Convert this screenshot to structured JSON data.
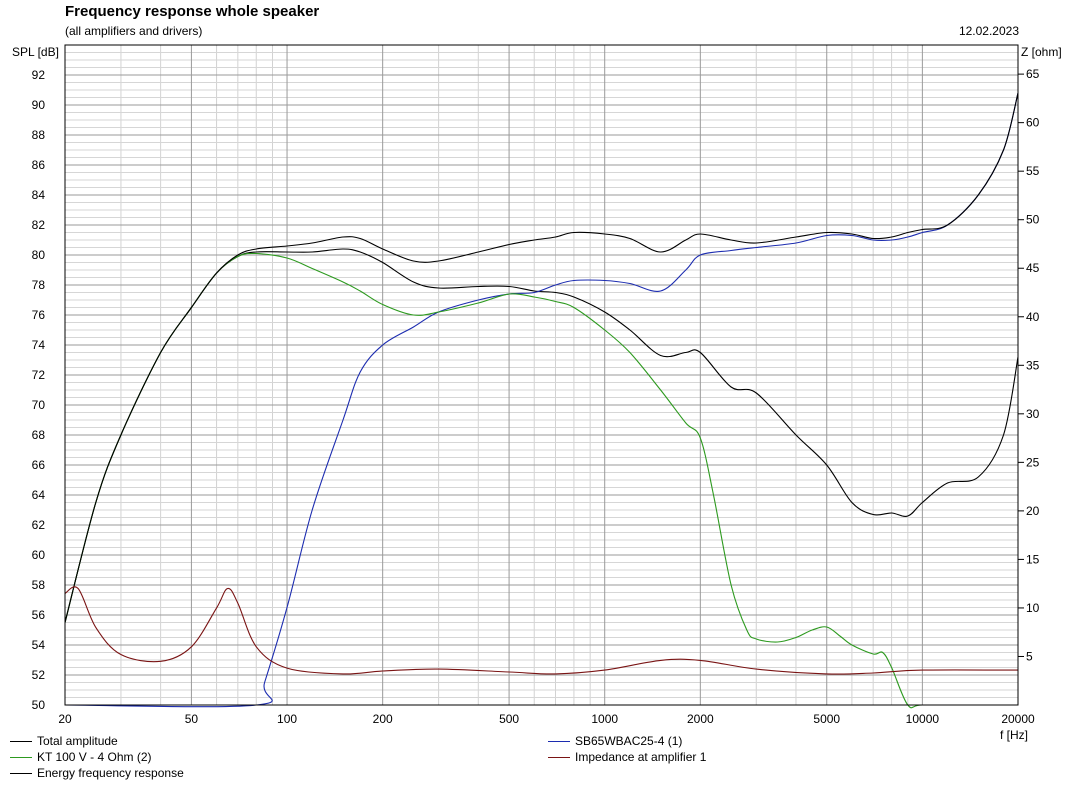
{
  "header": {
    "title": "Frequency response whole speaker",
    "subtitle": "(all amplifiers and drivers)",
    "date": "12.02.2023"
  },
  "chart_data": {
    "type": "line",
    "title": "Frequency response whole speaker",
    "subtitle": "(all amplifiers and drivers)",
    "xlabel": "f [Hz]",
    "ylabel_left": "SPL [dB]",
    "ylabel_right": "Z [ohm]",
    "x_scale": "log",
    "xlim": [
      20,
      20000
    ],
    "ylim_left": [
      50,
      94
    ],
    "ylim_right": [
      0,
      68
    ],
    "grid": true,
    "legend_placement": "bottom",
    "x_ticks": [
      20,
      50,
      100,
      200,
      500,
      1000,
      2000,
      5000,
      10000,
      20000
    ],
    "y_ticks_left": [
      50,
      52,
      54,
      56,
      58,
      60,
      62,
      64,
      66,
      68,
      70,
      72,
      74,
      76,
      78,
      80,
      82,
      84,
      86,
      88,
      90,
      92
    ],
    "y_ticks_right": [
      5,
      10,
      15,
      20,
      25,
      30,
      35,
      40,
      45,
      50,
      55,
      60,
      65
    ],
    "series": [
      {
        "name": "Total amplitude",
        "axis": "left",
        "color": "#000000",
        "x": [
          20,
          25,
          30,
          40,
          50,
          60,
          70,
          80,
          100,
          120,
          150,
          170,
          200,
          250,
          300,
          400,
          500,
          600,
          700,
          800,
          1000,
          1200,
          1500,
          1800,
          2000,
          2500,
          3000,
          4000,
          5000,
          6000,
          7000,
          8000,
          9000,
          10000,
          12000,
          15000,
          18000,
          20000
        ],
        "y": [
          55.5,
          63.5,
          68,
          73.5,
          76.5,
          78.8,
          79.9,
          80.2,
          80.2,
          80.2,
          80.4,
          80.2,
          79.5,
          78.2,
          77.8,
          77.9,
          77.9,
          77.6,
          77.5,
          77.2,
          76.2,
          75,
          73.3,
          73.5,
          73.5,
          71.2,
          70.8,
          68,
          66,
          63.5,
          62.7,
          62.8,
          62.6,
          63.5,
          64.8,
          65.2,
          68,
          73.2
        ]
      },
      {
        "name": "SB65WBAC25-4 (1)",
        "axis": "left",
        "color": "#1c2cb0",
        "x": [
          20,
          80,
          85,
          100,
          120,
          150,
          170,
          200,
          250,
          300,
          400,
          500,
          600,
          700,
          800,
          1000,
          1200,
          1500,
          1800,
          2000,
          2500,
          3000,
          4000,
          5000,
          6000,
          7000,
          8000,
          9000,
          10000,
          12000,
          15000,
          18000,
          20000
        ],
        "y": [
          50,
          50,
          51.5,
          56.5,
          63,
          69,
          72.2,
          74,
          75.2,
          76.2,
          77,
          77.4,
          77.5,
          78,
          78.3,
          78.3,
          78.1,
          77.6,
          79,
          80,
          80.3,
          80.5,
          80.8,
          81.3,
          81.3,
          81,
          81,
          81.2,
          81.5,
          82,
          84,
          87,
          90.8
        ]
      },
      {
        "name": "KT 100 V - 4 Ohm (2)",
        "axis": "left",
        "color": "#2d9a1f",
        "x": [
          20,
          25,
          30,
          40,
          50,
          60,
          70,
          80,
          100,
          120,
          150,
          170,
          200,
          250,
          300,
          400,
          500,
          600,
          700,
          800,
          1000,
          1200,
          1500,
          1800,
          2000,
          2200,
          2500,
          2800,
          3000,
          3500,
          4000,
          4500,
          5000,
          5500,
          6000,
          7000,
          7500,
          8000,
          9000,
          10000,
          15000,
          20000
        ],
        "y": [
          55.5,
          63.5,
          68,
          73.5,
          76.5,
          78.8,
          79.9,
          80.1,
          79.8,
          79.1,
          78.2,
          77.6,
          76.7,
          76,
          76.2,
          76.8,
          77.4,
          77.2,
          76.9,
          76.5,
          75,
          73.5,
          71,
          68.8,
          67.8,
          64,
          58,
          55,
          54.4,
          54.2,
          54.5,
          55,
          55.2,
          54.6,
          54,
          53.4,
          53.5,
          52.5,
          50,
          50,
          50,
          50
        ]
      },
      {
        "name": "Energy frequency response",
        "axis": "left",
        "color": "#000000",
        "x": [
          20,
          25,
          30,
          40,
          50,
          60,
          70,
          80,
          100,
          120,
          150,
          170,
          200,
          250,
          300,
          400,
          500,
          600,
          700,
          800,
          1000,
          1200,
          1500,
          1800,
          2000,
          2500,
          3000,
          4000,
          5000,
          6000,
          7000,
          8000,
          9000,
          10000,
          12000,
          15000,
          18000,
          20000
        ],
        "y": [
          55.5,
          63.5,
          68,
          73.5,
          76.5,
          78.8,
          80,
          80.4,
          80.6,
          80.8,
          81.2,
          81.1,
          80.4,
          79.6,
          79.6,
          80.2,
          80.7,
          81,
          81.2,
          81.5,
          81.4,
          81.1,
          80.2,
          81,
          81.4,
          81,
          80.8,
          81.2,
          81.5,
          81.4,
          81.1,
          81.2,
          81.5,
          81.7,
          82,
          84,
          87,
          90.8
        ]
      },
      {
        "name": "Impedance at amplifier 1",
        "axis": "right",
        "color": "#7a1414",
        "x": [
          20,
          22,
          25,
          30,
          40,
          50,
          60,
          65,
          70,
          80,
          100,
          150,
          200,
          300,
          500,
          700,
          1000,
          1500,
          2000,
          3000,
          5000,
          7000,
          10000,
          20000
        ],
        "y": [
          11.5,
          12,
          8,
          5.2,
          4.5,
          6,
          10,
          12,
          10.5,
          6,
          3.8,
          3.2,
          3.5,
          3.7,
          3.4,
          3.2,
          3.6,
          4.6,
          4.6,
          3.7,
          3.2,
          3.3,
          3.6,
          3.6
        ]
      }
    ]
  }
}
